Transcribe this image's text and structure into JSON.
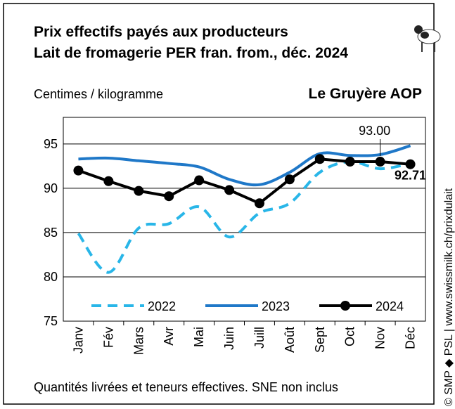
{
  "chart_data": {
    "type": "line",
    "title": "Prix effectifs payés aux producteurs",
    "subtitle": "Lait de fromagerie PER fran. from., déc. 2024",
    "y_label": "Centimes / kilogramme",
    "product": "Le Gruyère AOP",
    "note": "Quantités livrées et teneurs effectives. SNE non inclus",
    "source": "© SMP ◆ PSL | www.swissmilk.ch/prixdulait",
    "categories": [
      "Janv",
      "Fév",
      "Mars",
      "Avr",
      "Mai",
      "Juin",
      "Juill",
      "Août",
      "Sept",
      "Oct",
      "Nov",
      "Déc"
    ],
    "series": [
      {
        "name": "2022",
        "color": "#29b6e8",
        "style": "dashed",
        "values": [
          84.9,
          80.5,
          85.5,
          86.0,
          87.9,
          84.5,
          87.2,
          88.3,
          91.8,
          93.0,
          92.2,
          92.8
        ]
      },
      {
        "name": "2023",
        "color": "#1f78c8",
        "style": "solid",
        "values": [
          93.3,
          93.4,
          93.1,
          92.8,
          92.4,
          91.0,
          90.4,
          91.8,
          93.9,
          93.7,
          93.8,
          94.8
        ]
      },
      {
        "name": "2024",
        "color": "#000000",
        "style": "markers",
        "values": [
          92.0,
          90.8,
          89.7,
          89.1,
          90.9,
          89.8,
          88.3,
          91.0,
          93.3,
          93.0,
          93.0,
          92.71
        ],
        "value_labels": [
          null,
          null,
          null,
          null,
          null,
          null,
          null,
          null,
          null,
          null,
          "93.00",
          "92.71"
        ]
      }
    ],
    "ylim": [
      75,
      98
    ],
    "yticks": [
      75,
      80,
      85,
      90,
      95
    ],
    "grid": true
  }
}
